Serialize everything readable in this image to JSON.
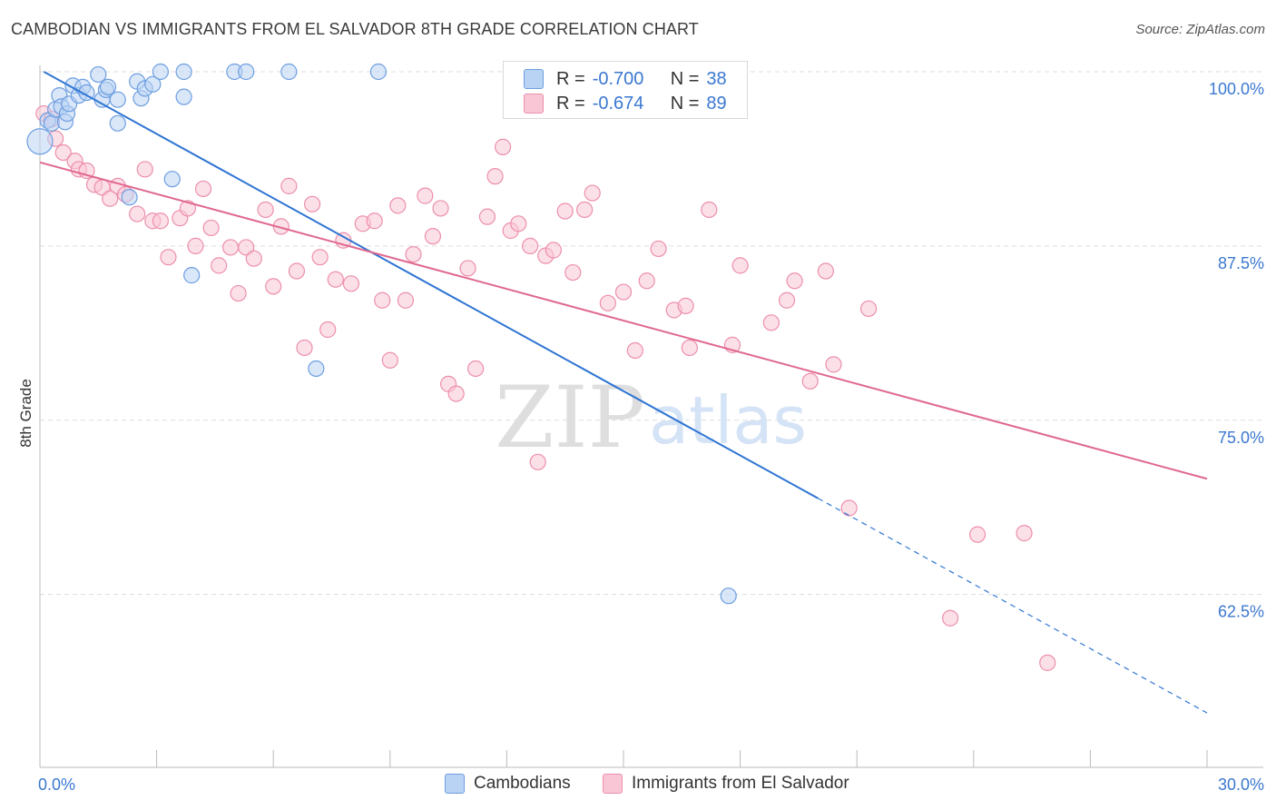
{
  "header": {
    "title": "CAMBODIAN VS IMMIGRANTS FROM EL SALVADOR 8TH GRADE CORRELATION CHART",
    "source": "Source: ZipAtlas.com"
  },
  "watermark": {
    "zip": "ZIP",
    "atlas": "atlas"
  },
  "colors": {
    "blue_fill": "#b9d3f4",
    "blue_stroke": "#6d9ee0",
    "blue_line": "#2f75d3",
    "pink_fill": "#f9c6d6",
    "pink_stroke": "#ec8fab",
    "pink_line": "#e0688f",
    "tick_label": "#3b78d0",
    "grid": "#dddddd"
  },
  "legend": {
    "rows": [
      {
        "r_label": "R =",
        "r_value": "-0.700",
        "n_label": "N =",
        "n_value": "38"
      },
      {
        "r_label": "R =",
        "r_value": "-0.674",
        "n_label": "N =",
        "n_value": "89"
      }
    ]
  },
  "bottom_legend": [
    "Cambodians",
    "Immigrants from El Salvador"
  ],
  "chart_data": {
    "type": "scatter",
    "title": "CAMBODIAN VS IMMIGRANTS FROM EL SALVADOR 8TH GRADE CORRELATION CHART",
    "xlabel": "",
    "ylabel": "8th Grade",
    "xlim": [
      0,
      30
    ],
    "ylim": [
      51,
      101
    ],
    "x_tick_labels": [
      "0.0%",
      "30.0%"
    ],
    "y_ticks": [
      62.5,
      75.0,
      87.5,
      100.0
    ],
    "y_tick_labels": [
      "62.5%",
      "75.0%",
      "87.5%",
      "100.0%"
    ],
    "grid": true,
    "legend_position": "top-center",
    "series": [
      {
        "name": "Cambodians",
        "color": "#6d9ee0",
        "regression": {
          "x": [
            0.1,
            20.0
          ],
          "y": [
            100.0,
            69.4
          ],
          "dashed_to": [
            30.0,
            54.0
          ]
        },
        "points": [
          [
            0.0,
            95.0
          ],
          [
            0.2,
            96.5
          ],
          [
            0.3,
            96.3
          ],
          [
            0.4,
            97.3
          ],
          [
            0.5,
            98.3
          ],
          [
            0.55,
            97.5
          ],
          [
            0.65,
            96.4
          ],
          [
            0.7,
            97.0
          ],
          [
            0.75,
            97.7
          ],
          [
            0.85,
            99.0
          ],
          [
            1.0,
            98.3
          ],
          [
            1.1,
            98.9
          ],
          [
            1.2,
            98.5
          ],
          [
            1.5,
            99.8
          ],
          [
            1.6,
            98.0
          ],
          [
            1.7,
            98.7
          ],
          [
            1.75,
            98.9
          ],
          [
            2.0,
            98.0
          ],
          [
            2.0,
            96.3
          ],
          [
            2.3,
            91.0
          ],
          [
            2.5,
            99.3
          ],
          [
            2.6,
            98.1
          ],
          [
            2.7,
            98.8
          ],
          [
            2.9,
            99.1
          ],
          [
            3.1,
            100.0
          ],
          [
            3.4,
            92.3
          ],
          [
            3.7,
            100.0
          ],
          [
            3.7,
            98.2
          ],
          [
            3.9,
            85.4
          ],
          [
            5.0,
            100.0
          ],
          [
            5.3,
            100.0
          ],
          [
            6.4,
            100.0
          ],
          [
            7.1,
            78.7
          ],
          [
            8.7,
            100.0
          ],
          [
            17.7,
            62.4
          ]
        ]
      },
      {
        "name": "Immigrants from El Salvador",
        "color": "#ec8fab",
        "regression": {
          "x": [
            0.0,
            30.0
          ],
          "y": [
            93.5,
            70.8
          ]
        },
        "points": [
          [
            0.1,
            97.0
          ],
          [
            0.3,
            96.6
          ],
          [
            0.4,
            95.2
          ],
          [
            0.6,
            94.2
          ],
          [
            0.9,
            93.6
          ],
          [
            1.0,
            93.0
          ],
          [
            1.2,
            92.9
          ],
          [
            1.4,
            91.9
          ],
          [
            1.6,
            91.7
          ],
          [
            1.8,
            90.9
          ],
          [
            2.0,
            91.8
          ],
          [
            2.2,
            91.2
          ],
          [
            2.5,
            89.8
          ],
          [
            2.7,
            93.0
          ],
          [
            2.9,
            89.3
          ],
          [
            3.1,
            89.3
          ],
          [
            3.3,
            86.7
          ],
          [
            3.6,
            89.5
          ],
          [
            3.8,
            90.2
          ],
          [
            4.0,
            87.5
          ],
          [
            4.2,
            91.6
          ],
          [
            4.4,
            88.8
          ],
          [
            4.6,
            86.1
          ],
          [
            4.9,
            87.4
          ],
          [
            5.1,
            84.1
          ],
          [
            5.3,
            87.4
          ],
          [
            5.5,
            86.6
          ],
          [
            5.8,
            90.1
          ],
          [
            6.0,
            84.6
          ],
          [
            6.2,
            88.9
          ],
          [
            6.4,
            91.8
          ],
          [
            6.6,
            85.7
          ],
          [
            6.8,
            80.2
          ],
          [
            7.0,
            90.5
          ],
          [
            7.2,
            86.7
          ],
          [
            7.4,
            81.5
          ],
          [
            7.6,
            85.1
          ],
          [
            7.8,
            87.9
          ],
          [
            8.0,
            84.8
          ],
          [
            8.3,
            89.1
          ],
          [
            8.6,
            89.3
          ],
          [
            8.8,
            83.6
          ],
          [
            9.0,
            79.3
          ],
          [
            9.2,
            90.4
          ],
          [
            9.4,
            83.6
          ],
          [
            9.6,
            86.9
          ],
          [
            9.9,
            91.1
          ],
          [
            10.1,
            88.2
          ],
          [
            10.3,
            90.2
          ],
          [
            10.5,
            77.6
          ],
          [
            10.7,
            76.9
          ],
          [
            11.0,
            85.9
          ],
          [
            11.2,
            78.7
          ],
          [
            11.5,
            89.6
          ],
          [
            11.7,
            92.5
          ],
          [
            11.9,
            94.6
          ],
          [
            12.1,
            88.6
          ],
          [
            12.3,
            89.1
          ],
          [
            12.6,
            87.5
          ],
          [
            12.8,
            72.0
          ],
          [
            13.0,
            86.8
          ],
          [
            13.2,
            87.2
          ],
          [
            13.5,
            90.0
          ],
          [
            13.7,
            85.6
          ],
          [
            14.0,
            90.1
          ],
          [
            14.2,
            91.3
          ],
          [
            14.6,
            83.4
          ],
          [
            15.0,
            84.2
          ],
          [
            15.3,
            80.0
          ],
          [
            15.6,
            85.0
          ],
          [
            15.9,
            87.3
          ],
          [
            16.3,
            82.9
          ],
          [
            16.6,
            83.2
          ],
          [
            16.7,
            80.2
          ],
          [
            17.2,
            90.1
          ],
          [
            17.8,
            80.4
          ],
          [
            18.0,
            86.1
          ],
          [
            18.8,
            82.0
          ],
          [
            19.2,
            83.6
          ],
          [
            19.4,
            85.0
          ],
          [
            19.8,
            77.8
          ],
          [
            20.2,
            85.7
          ],
          [
            20.4,
            79.0
          ],
          [
            20.8,
            68.7
          ],
          [
            21.3,
            83.0
          ],
          [
            23.4,
            60.8
          ],
          [
            24.1,
            66.8
          ],
          [
            25.3,
            66.9
          ],
          [
            25.9,
            57.6
          ]
        ]
      }
    ]
  }
}
